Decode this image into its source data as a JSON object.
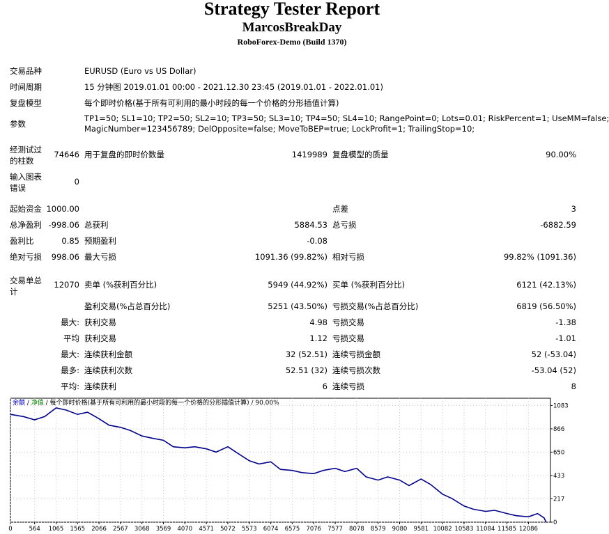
{
  "header": {
    "title": "Strategy Tester Report",
    "ea_name": "MarcosBreakDay",
    "server": "RoboForex-Demo (Build 1370)"
  },
  "info": {
    "symbol_label": "交易品种",
    "symbol_value": "EURUSD (Euro vs US Dollar)",
    "period_label": "时间周期",
    "period_value": "15 分钟图 2019.01.01 00:00 - 2021.12.30 23:45 (2019.01.01 - 2022.01.01)",
    "model_label": "复盘模型",
    "model_value": "每个即时价格(基于所有可利用的最小时段的每一个价格的分形插值计算)",
    "params_label": "参数",
    "params_line1": "TP1=50; SL1=10; TP2=50; SL2=10; TP3=50; SL3=10; TP4=50; SL4=10; RangePoint=0; Lots=0.01; RiskPercent=1; UseMM=false;",
    "params_line2": "MagicNumber=123456789; DelOpposite=false; MoveToBEP=true; LockProfit=1; TrailingStop=10;"
  },
  "stats": {
    "bars_label": "经测试过的柱数",
    "bars_value": "74646",
    "ticks_label": "用于复盘的即时价数量",
    "ticks_value": "1419989",
    "quality_label": "复盘模型的质量",
    "quality_value": "90.00%",
    "mismatch_label": "输入图表错误",
    "mismatch_value": "0",
    "deposit_label": "起始资金",
    "deposit_value": "1000.00",
    "spread_label": "点差",
    "spread_value": "3",
    "net_label": "总净盈利",
    "net_value": "-998.06",
    "gross_profit_label": "总获利",
    "gross_profit_value": "5884.53",
    "gross_loss_label": "总亏损",
    "gross_loss_value": "-6882.59",
    "pf_label": "盈利比",
    "pf_value": "0.85",
    "payoff_label": "预期盈利",
    "payoff_value": "-0.08",
    "abs_dd_label": "绝对亏损",
    "abs_dd_value": "998.06",
    "max_dd_label": "最大亏损",
    "max_dd_value": "1091.36 (99.82%)",
    "rel_dd_label": "相对亏损",
    "rel_dd_value": "99.82% (1091.36)",
    "trades_label": "交易单总计",
    "trades_value": "12070",
    "short_label": "卖单 (%获利百分比)",
    "short_value": "5949 (44.92%)",
    "long_label": "买单 (%获利百分比)",
    "long_value": "6121 (42.13%)",
    "profit_trades_label": "盈利交易(%占总百分比)",
    "profit_trades_value": "5251 (43.50%)",
    "loss_trades_label": "亏损交易(%占总百分比)",
    "loss_trades_value": "6819 (56.50%)",
    "largest_prefix": "最大:",
    "largest_profit_label": "获利交易",
    "largest_profit_value": "4.98",
    "largest_loss_label": "亏损交易",
    "largest_loss_value": "-1.38",
    "average_prefix": "平均",
    "average_profit_label": "获利交易",
    "average_profit_value": "1.12",
    "average_loss_label": "亏损交易",
    "average_loss_value": "-1.01",
    "max_prefix": "最大:",
    "max_consec_wins_label": "连续获利金额",
    "max_consec_wins_value": "32 (52.51)",
    "max_consec_losses_label": "连续亏损金额",
    "max_consec_losses_value": "52 (-53.04)",
    "maximal_prefix": "最多:",
    "maximal_consec_profit_label": "连续获利次数",
    "maximal_consec_profit_value": "52.51 (32)",
    "maximal_consec_loss_label": "连续亏损次数",
    "maximal_consec_loss_value": "-53.04 (52)",
    "avg_consec_prefix": "平均:",
    "avg_consec_wins_label": "连续获利",
    "avg_consec_wins_value": "6",
    "avg_consec_losses_label": "连续亏损",
    "avg_consec_losses_value": "8"
  },
  "chart_legend": {
    "balance": "余额",
    "sep1": " / ",
    "equity": "净值",
    "sep2": " / ",
    "model": "每个即时价格(基于所有可利用的最小时段的每一个价格的分形插值计算)",
    "sep3": " / ",
    "quality": "90.00%"
  },
  "chart_data": {
    "type": "line",
    "title": "",
    "xlabel": "",
    "ylabel": "",
    "x_ticks": [
      0,
      564,
      1065,
      1565,
      2066,
      2567,
      3068,
      3569,
      4070,
      4571,
      5072,
      5573,
      6074,
      6575,
      7076,
      7577,
      8078,
      8579,
      9080,
      9581,
      10082,
      10583,
      11084,
      11585,
      12086
    ],
    "y_ticks": [
      0,
      217,
      433,
      650,
      866,
      1083
    ],
    "xlim": [
      0,
      12600
    ],
    "ylim": [
      0,
      1150
    ],
    "grid": true,
    "series": [
      {
        "color": "#00008b",
        "x": [
          0,
          300,
          564,
          800,
          1065,
          1300,
          1565,
          1800,
          2066,
          2300,
          2567,
          2800,
          3068,
          3300,
          3569,
          3800,
          4070,
          4300,
          4571,
          4800,
          5072,
          5300,
          5573,
          5800,
          6074,
          6300,
          6575,
          6800,
          7076,
          7300,
          7577,
          7800,
          8078,
          8300,
          8579,
          8800,
          9080,
          9300,
          9581,
          9800,
          10082,
          10300,
          10583,
          10800,
          11084,
          11300,
          11585,
          11800,
          12086,
          12300,
          12450,
          12500
        ],
        "y": [
          1000,
          980,
          950,
          980,
          1060,
          1040,
          1000,
          1020,
          960,
          900,
          880,
          850,
          800,
          780,
          760,
          700,
          690,
          700,
          680,
          650,
          700,
          640,
          570,
          540,
          560,
          490,
          480,
          460,
          450,
          480,
          500,
          470,
          500,
          420,
          390,
          420,
          390,
          340,
          400,
          350,
          260,
          220,
          150,
          120,
          100,
          110,
          80,
          60,
          50,
          80,
          40,
          0
        ]
      }
    ]
  }
}
